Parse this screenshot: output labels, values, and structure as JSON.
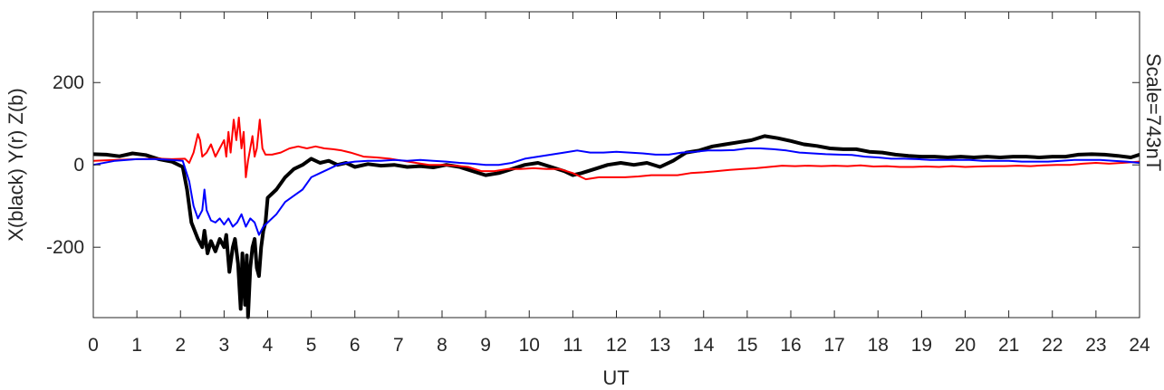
{
  "chart_data": {
    "type": "line",
    "title": "",
    "xlabel": "UT",
    "ylabel": "X(black) Y(r) Z(b)",
    "annotation": "Scale=743nT",
    "xlim": [
      0,
      24
    ],
    "ylim": [
      -371,
      372
    ],
    "x_ticks": [
      0,
      1,
      2,
      3,
      4,
      5,
      6,
      7,
      8,
      9,
      10,
      11,
      12,
      13,
      14,
      15,
      16,
      17,
      18,
      19,
      20,
      21,
      22,
      23,
      24
    ],
    "y_ticks": [
      -200,
      0,
      200
    ],
    "grid": false,
    "legend": "none",
    "series": [
      {
        "key": "X",
        "color": "#000000",
        "width": 4,
        "points": [
          [
            0,
            26
          ],
          [
            0.3,
            25
          ],
          [
            0.6,
            21
          ],
          [
            0.9,
            28
          ],
          [
            1.2,
            24
          ],
          [
            1.5,
            14
          ],
          [
            1.8,
            8
          ],
          [
            2.05,
            -5
          ],
          [
            2.15,
            -60
          ],
          [
            2.25,
            -140
          ],
          [
            2.4,
            -180
          ],
          [
            2.5,
            -200
          ],
          [
            2.55,
            -160
          ],
          [
            2.62,
            -215
          ],
          [
            2.7,
            -185
          ],
          [
            2.8,
            -210
          ],
          [
            2.9,
            -180
          ],
          [
            3.0,
            -200
          ],
          [
            3.05,
            -170
          ],
          [
            3.12,
            -260
          ],
          [
            3.2,
            -200
          ],
          [
            3.25,
            -180
          ],
          [
            3.32,
            -240
          ],
          [
            3.38,
            -350
          ],
          [
            3.42,
            -215
          ],
          [
            3.48,
            -340
          ],
          [
            3.52,
            -220
          ],
          [
            3.55,
            -370
          ],
          [
            3.6,
            -250
          ],
          [
            3.65,
            -200
          ],
          [
            3.7,
            -180
          ],
          [
            3.75,
            -250
          ],
          [
            3.8,
            -270
          ],
          [
            3.85,
            -200
          ],
          [
            3.9,
            -160
          ],
          [
            3.95,
            -140
          ],
          [
            4.0,
            -80
          ],
          [
            4.2,
            -60
          ],
          [
            4.4,
            -30
          ],
          [
            4.6,
            -10
          ],
          [
            4.8,
            0
          ],
          [
            5.0,
            15
          ],
          [
            5.2,
            5
          ],
          [
            5.4,
            10
          ],
          [
            5.6,
            0
          ],
          [
            5.8,
            5
          ],
          [
            6.0,
            -5
          ],
          [
            6.3,
            2
          ],
          [
            6.6,
            -2
          ],
          [
            6.9,
            0
          ],
          [
            7.2,
            -5
          ],
          [
            7.5,
            -3
          ],
          [
            7.8,
            -6
          ],
          [
            8.1,
            0
          ],
          [
            8.4,
            -5
          ],
          [
            8.7,
            -15
          ],
          [
            9.0,
            -25
          ],
          [
            9.3,
            -20
          ],
          [
            9.6,
            -10
          ],
          [
            9.9,
            0
          ],
          [
            10.2,
            5
          ],
          [
            10.5,
            -5
          ],
          [
            10.8,
            -15
          ],
          [
            11.0,
            -25
          ],
          [
            11.2,
            -20
          ],
          [
            11.5,
            -10
          ],
          [
            11.8,
            0
          ],
          [
            12.1,
            5
          ],
          [
            12.4,
            0
          ],
          [
            12.7,
            5
          ],
          [
            13.0,
            -5
          ],
          [
            13.3,
            10
          ],
          [
            13.6,
            30
          ],
          [
            13.9,
            35
          ],
          [
            14.2,
            45
          ],
          [
            14.5,
            50
          ],
          [
            14.8,
            55
          ],
          [
            15.1,
            60
          ],
          [
            15.4,
            70
          ],
          [
            15.7,
            65
          ],
          [
            16.0,
            58
          ],
          [
            16.3,
            50
          ],
          [
            16.6,
            46
          ],
          [
            16.9,
            40
          ],
          [
            17.2,
            38
          ],
          [
            17.5,
            38
          ],
          [
            17.8,
            32
          ],
          [
            18.1,
            30
          ],
          [
            18.4,
            25
          ],
          [
            18.7,
            22
          ],
          [
            19.0,
            20
          ],
          [
            19.3,
            20
          ],
          [
            19.6,
            18
          ],
          [
            19.9,
            20
          ],
          [
            20.2,
            18
          ],
          [
            20.5,
            20
          ],
          [
            20.8,
            18
          ],
          [
            21.1,
            20
          ],
          [
            21.4,
            20
          ],
          [
            21.7,
            18
          ],
          [
            22.0,
            20
          ],
          [
            22.3,
            20
          ],
          [
            22.6,
            25
          ],
          [
            22.9,
            26
          ],
          [
            23.2,
            25
          ],
          [
            23.5,
            22
          ],
          [
            23.8,
            18
          ],
          [
            24.0,
            25
          ]
        ]
      },
      {
        "key": "Y",
        "color": "#ff0000",
        "width": 2,
        "points": [
          [
            0,
            10
          ],
          [
            0.5,
            12
          ],
          [
            1.0,
            14
          ],
          [
            1.5,
            15
          ],
          [
            1.8,
            14
          ],
          [
            2.1,
            15
          ],
          [
            2.2,
            5
          ],
          [
            2.3,
            30
          ],
          [
            2.4,
            75
          ],
          [
            2.45,
            60
          ],
          [
            2.5,
            20
          ],
          [
            2.6,
            30
          ],
          [
            2.7,
            50
          ],
          [
            2.8,
            20
          ],
          [
            2.9,
            40
          ],
          [
            3.0,
            60
          ],
          [
            3.05,
            20
          ],
          [
            3.1,
            80
          ],
          [
            3.15,
            30
          ],
          [
            3.22,
            110
          ],
          [
            3.28,
            60
          ],
          [
            3.34,
            115
          ],
          [
            3.4,
            40
          ],
          [
            3.45,
            80
          ],
          [
            3.5,
            -30
          ],
          [
            3.55,
            10
          ],
          [
            3.6,
            40
          ],
          [
            3.65,
            70
          ],
          [
            3.7,
            20
          ],
          [
            3.75,
            40
          ],
          [
            3.82,
            110
          ],
          [
            3.88,
            40
          ],
          [
            3.95,
            25
          ],
          [
            4.1,
            25
          ],
          [
            4.3,
            30
          ],
          [
            4.5,
            40
          ],
          [
            4.7,
            45
          ],
          [
            4.9,
            40
          ],
          [
            5.1,
            45
          ],
          [
            5.3,
            40
          ],
          [
            5.5,
            38
          ],
          [
            5.7,
            35
          ],
          [
            5.9,
            30
          ],
          [
            6.2,
            20
          ],
          [
            6.5,
            18
          ],
          [
            6.8,
            15
          ],
          [
            7.1,
            10
          ],
          [
            7.4,
            5
          ],
          [
            7.7,
            0
          ],
          [
            8.0,
            0
          ],
          [
            8.3,
            -2
          ],
          [
            8.6,
            -5
          ],
          [
            8.9,
            -15
          ],
          [
            9.2,
            -15
          ],
          [
            9.5,
            -10
          ],
          [
            9.8,
            -10
          ],
          [
            10.1,
            -8
          ],
          [
            10.4,
            -10
          ],
          [
            10.7,
            -10
          ],
          [
            11.0,
            -20
          ],
          [
            11.3,
            -35
          ],
          [
            11.6,
            -30
          ],
          [
            11.9,
            -30
          ],
          [
            12.2,
            -30
          ],
          [
            12.5,
            -28
          ],
          [
            12.8,
            -25
          ],
          [
            13.1,
            -25
          ],
          [
            13.4,
            -25
          ],
          [
            13.7,
            -20
          ],
          [
            14.0,
            -18
          ],
          [
            14.3,
            -15
          ],
          [
            14.6,
            -12
          ],
          [
            14.9,
            -10
          ],
          [
            15.2,
            -8
          ],
          [
            15.5,
            -5
          ],
          [
            15.8,
            -2
          ],
          [
            16.1,
            -3
          ],
          [
            16.4,
            -2
          ],
          [
            16.7,
            -3
          ],
          [
            17.0,
            -2
          ],
          [
            17.3,
            -3
          ],
          [
            17.6,
            -1
          ],
          [
            17.9,
            -4
          ],
          [
            18.2,
            -3
          ],
          [
            18.5,
            -5
          ],
          [
            18.8,
            -5
          ],
          [
            19.1,
            -4
          ],
          [
            19.4,
            -5
          ],
          [
            19.7,
            -3
          ],
          [
            20.0,
            -5
          ],
          [
            20.3,
            -4
          ],
          [
            20.6,
            -3
          ],
          [
            20.9,
            -3
          ],
          [
            21.2,
            -2
          ],
          [
            21.5,
            -3
          ],
          [
            21.8,
            -1
          ],
          [
            22.1,
            0
          ],
          [
            22.4,
            0
          ],
          [
            22.7,
            3
          ],
          [
            23.0,
            5
          ],
          [
            23.3,
            3
          ],
          [
            23.6,
            5
          ],
          [
            24.0,
            8
          ]
        ]
      },
      {
        "key": "Z",
        "color": "#0000ff",
        "width": 2,
        "points": [
          [
            0,
            0
          ],
          [
            0.5,
            10
          ],
          [
            1.0,
            14
          ],
          [
            1.5,
            14
          ],
          [
            1.8,
            12
          ],
          [
            2.05,
            10
          ],
          [
            2.2,
            -40
          ],
          [
            2.3,
            -100
          ],
          [
            2.4,
            -130
          ],
          [
            2.5,
            -110
          ],
          [
            2.55,
            -60
          ],
          [
            2.6,
            -110
          ],
          [
            2.7,
            -135
          ],
          [
            2.8,
            -140
          ],
          [
            2.9,
            -130
          ],
          [
            3.0,
            -145
          ],
          [
            3.1,
            -130
          ],
          [
            3.2,
            -150
          ],
          [
            3.3,
            -140
          ],
          [
            3.4,
            -120
          ],
          [
            3.5,
            -150
          ],
          [
            3.6,
            -130
          ],
          [
            3.7,
            -140
          ],
          [
            3.8,
            -170
          ],
          [
            3.9,
            -150
          ],
          [
            4.0,
            -140
          ],
          [
            4.2,
            -120
          ],
          [
            4.4,
            -90
          ],
          [
            4.6,
            -75
          ],
          [
            4.8,
            -60
          ],
          [
            5.0,
            -30
          ],
          [
            5.2,
            -20
          ],
          [
            5.4,
            -10
          ],
          [
            5.6,
            0
          ],
          [
            5.8,
            5
          ],
          [
            6.0,
            8
          ],
          [
            6.3,
            10
          ],
          [
            6.6,
            10
          ],
          [
            6.9,
            12
          ],
          [
            7.2,
            10
          ],
          [
            7.5,
            12
          ],
          [
            7.8,
            10
          ],
          [
            8.1,
            8
          ],
          [
            8.4,
            5
          ],
          [
            8.7,
            3
          ],
          [
            9.0,
            0
          ],
          [
            9.3,
            0
          ],
          [
            9.6,
            5
          ],
          [
            9.9,
            15
          ],
          [
            10.2,
            20
          ],
          [
            10.5,
            25
          ],
          [
            10.8,
            30
          ],
          [
            11.1,
            35
          ],
          [
            11.4,
            30
          ],
          [
            11.7,
            30
          ],
          [
            12.0,
            32
          ],
          [
            12.3,
            30
          ],
          [
            12.6,
            28
          ],
          [
            12.9,
            25
          ],
          [
            13.2,
            25
          ],
          [
            13.5,
            30
          ],
          [
            13.8,
            32
          ],
          [
            14.1,
            35
          ],
          [
            14.4,
            35
          ],
          [
            14.7,
            36
          ],
          [
            15.0,
            40
          ],
          [
            15.3,
            40
          ],
          [
            15.6,
            38
          ],
          [
            15.9,
            35
          ],
          [
            16.2,
            30
          ],
          [
            16.5,
            28
          ],
          [
            16.8,
            26
          ],
          [
            17.1,
            25
          ],
          [
            17.4,
            24
          ],
          [
            17.7,
            20
          ],
          [
            18.0,
            18
          ],
          [
            18.3,
            15
          ],
          [
            18.6,
            15
          ],
          [
            18.9,
            14
          ],
          [
            19.2,
            12
          ],
          [
            19.5,
            12
          ],
          [
            19.8,
            12
          ],
          [
            20.1,
            12
          ],
          [
            20.4,
            10
          ],
          [
            20.7,
            10
          ],
          [
            21.0,
            10
          ],
          [
            21.3,
            8
          ],
          [
            21.6,
            8
          ],
          [
            21.9,
            8
          ],
          [
            22.2,
            10
          ],
          [
            22.5,
            12
          ],
          [
            22.8,
            12
          ],
          [
            23.1,
            12
          ],
          [
            23.4,
            10
          ],
          [
            23.7,
            8
          ],
          [
            24.0,
            5
          ]
        ]
      }
    ]
  }
}
